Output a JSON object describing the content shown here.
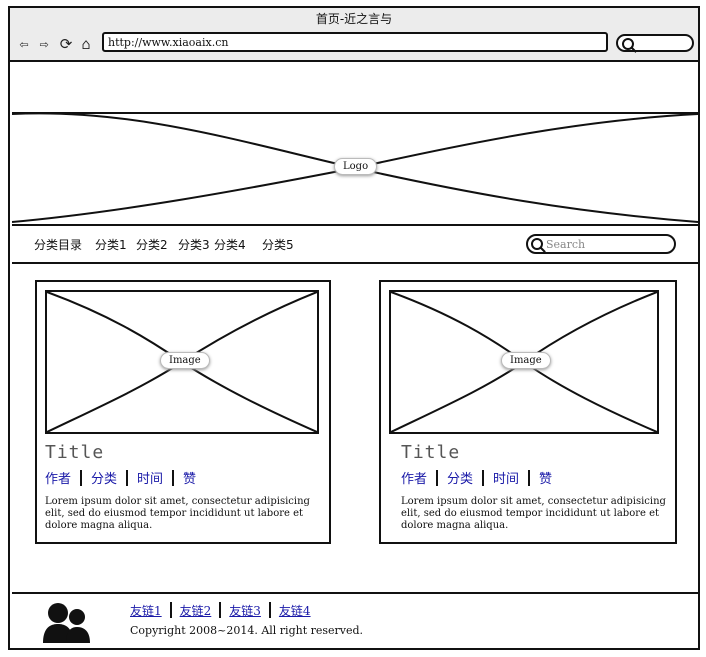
{
  "browser": {
    "title": "首页-近之言与",
    "url": "http://www.xiaoaix.cn"
  },
  "logo": {
    "label": "Logo"
  },
  "nav": {
    "items": [
      "分类目录",
      "分类1",
      "分类2",
      "分类3",
      "分类4",
      "分类5"
    ],
    "search_placeholder": "Search"
  },
  "cards": [
    {
      "image_label": "Image",
      "title": "Title",
      "meta": [
        "作者",
        "分类",
        "时间",
        "赞"
      ],
      "body": "Lorem ipsum dolor sit amet, consectetur adipisicing elit, sed do eiusmod tempor incididunt ut labore et dolore magna aliqua."
    },
    {
      "image_label": "Image",
      "title": "Title",
      "meta": [
        "作者",
        "分类",
        "时间",
        "赞"
      ],
      "body": "Lorem ipsum dolor sit amet, consectetur adipisicing elit, sed do eiusmod tempor incididunt ut labore et dolore magna aliqua."
    }
  ],
  "footer": {
    "links": [
      "友链1",
      "友链2",
      "友链3",
      "友链4"
    ],
    "copyright": "Copyright 2008~2014. All right reserved."
  }
}
